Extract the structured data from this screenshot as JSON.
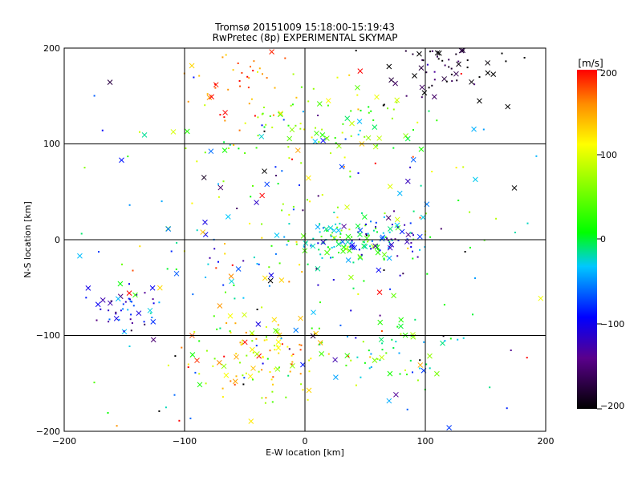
{
  "chart_data": {
    "type": "scatter",
    "title": "Tromsø 20151009 15:18:00-15:19:43",
    "subtitle": "RwPretec (8p) EXPERIMENTAL SKYMAP",
    "xlabel": "E-W location [km]",
    "ylabel": "N-S location [km]",
    "xlim": [
      -200,
      200
    ],
    "ylim": [
      -200,
      200
    ],
    "x_ticks": [
      -200,
      -100,
      0,
      100,
      200
    ],
    "y_ticks": [
      -200,
      -100,
      0,
      100,
      200
    ],
    "x_tick_labels": [
      "−200",
      "−100",
      "0",
      "100",
      "200"
    ],
    "y_tick_labels": [
      "−200",
      "−100",
      "0",
      "100",
      "200"
    ],
    "grid": true,
    "markers": [
      "x",
      "dot"
    ],
    "colorbar": {
      "title": "[m/s]",
      "range": [
        -200,
        200
      ],
      "ticks": [
        200,
        100,
        0,
        -100,
        -200
      ],
      "tick_labels": [
        "200",
        "100",
        "0",
        "−100",
        "−200"
      ],
      "colormap": [
        "#000000",
        "#5a008c",
        "#0000ff",
        "#00c8ff",
        "#00ff00",
        "#ffff00",
        "#ff0000"
      ]
    },
    "clusters": [
      {
        "region": "north-center",
        "x": 15,
        "y": 120,
        "velocity": 60,
        "count": 80
      },
      {
        "region": "north-west",
        "x": -55,
        "y": 165,
        "velocity": 170,
        "count": 45
      },
      {
        "region": "north-east",
        "x": 115,
        "y": 180,
        "velocity": -190,
        "count": 70
      },
      {
        "region": "center",
        "x": 35,
        "y": 0,
        "velocity": 10,
        "count": 110
      },
      {
        "region": "center-east",
        "x": 65,
        "y": 0,
        "velocity": -110,
        "count": 40
      },
      {
        "region": "south-west",
        "x": -40,
        "y": -120,
        "velocity": 110,
        "count": 110
      },
      {
        "region": "west",
        "x": -150,
        "y": -70,
        "velocity": -100,
        "count": 45
      },
      {
        "region": "south-east",
        "x": 75,
        "y": -120,
        "velocity": 10,
        "count": 45
      },
      {
        "region": "scattered",
        "x": 0,
        "y": 0,
        "velocity": 0,
        "count": 300
      }
    ]
  }
}
